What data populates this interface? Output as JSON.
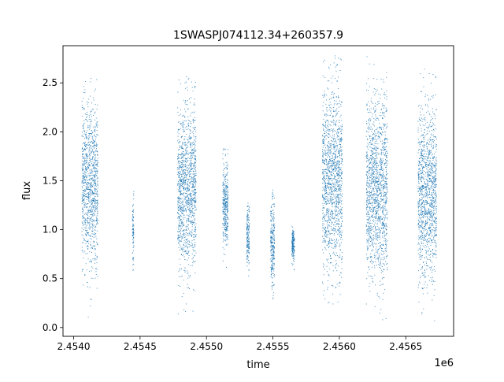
{
  "chart_data": {
    "type": "scatter",
    "title": "1SWASPJ074112.34+260357.9",
    "xlabel": "time",
    "ylabel": "flux",
    "x_offset_label": "1e6",
    "xlim": [
      2453920,
      2456860
    ],
    "ylim": [
      -0.09,
      2.88
    ],
    "x_ticks": [
      {
        "value": 2454000,
        "label": "2.4540"
      },
      {
        "value": 2454500,
        "label": "2.4545"
      },
      {
        "value": 2455000,
        "label": "2.4550"
      },
      {
        "value": 2455500,
        "label": "2.4555"
      },
      {
        "value": 2456000,
        "label": "2.4560"
      },
      {
        "value": 2456500,
        "label": "2.4565"
      }
    ],
    "y_ticks": [
      {
        "value": 0.0,
        "label": "0.0"
      },
      {
        "value": 0.5,
        "label": "0.5"
      },
      {
        "value": 1.0,
        "label": "1.0"
      },
      {
        "value": 1.5,
        "label": "1.5"
      },
      {
        "value": 2.0,
        "label": "2.0"
      },
      {
        "value": 2.5,
        "label": "2.5"
      }
    ],
    "grid": false,
    "legend": "none",
    "marker_color": "#1f77b4",
    "observing_seasons": [
      {
        "x_start": 2454060,
        "x_end": 2454180,
        "y_center": 1.45,
        "y_min": 0.1,
        "y_max": 2.55
      },
      {
        "x_start": 2454440,
        "x_end": 2454450,
        "y_center": 1.0,
        "y_min": 0.55,
        "y_max": 1.65
      },
      {
        "x_start": 2454780,
        "x_end": 2454920,
        "y_center": 1.42,
        "y_min": 0.1,
        "y_max": 2.6
      },
      {
        "x_start": 2455120,
        "x_end": 2455160,
        "y_center": 1.25,
        "y_min": 0.45,
        "y_max": 1.85
      },
      {
        "x_start": 2455300,
        "x_end": 2455320,
        "y_center": 0.95,
        "y_min": 0.45,
        "y_max": 1.3
      },
      {
        "x_start": 2455480,
        "x_end": 2455510,
        "y_center": 0.85,
        "y_min": 0.2,
        "y_max": 1.55
      },
      {
        "x_start": 2455640,
        "x_end": 2455660,
        "y_center": 0.85,
        "y_min": 0.55,
        "y_max": 1.05
      },
      {
        "x_start": 2455870,
        "x_end": 2456020,
        "y_center": 1.5,
        "y_min": 0.05,
        "y_max": 2.78
      },
      {
        "x_start": 2456200,
        "x_end": 2456360,
        "y_center": 1.42,
        "y_min": 0.05,
        "y_max": 2.78
      },
      {
        "x_start": 2456590,
        "x_end": 2456730,
        "y_center": 1.38,
        "y_min": 0.05,
        "y_max": 2.65
      }
    ]
  }
}
